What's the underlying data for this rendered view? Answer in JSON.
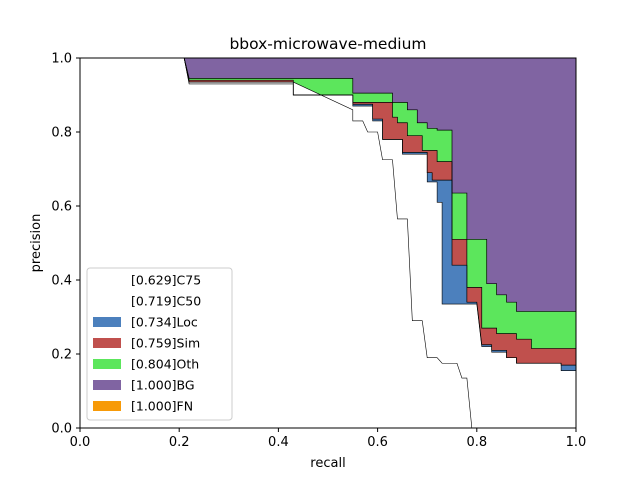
{
  "chart_data": {
    "type": "area",
    "title": "bbox-microwave-medium",
    "xlabel": "recall",
    "ylabel": "precision",
    "xlim": [
      0,
      1
    ],
    "ylim": [
      0,
      1
    ],
    "xticks": [
      "0.0",
      "0.2",
      "0.4",
      "0.6",
      "0.8",
      "1.0"
    ],
    "yticks": [
      "0.0",
      "0.2",
      "0.4",
      "0.6",
      "0.8",
      "1.0"
    ],
    "legend_position": "lower-left",
    "series": [
      {
        "name": "[0.629]C75",
        "color": "#ffffff",
        "points": [
          [
            0,
            1
          ],
          [
            0.21,
            1
          ],
          [
            0.22,
            0.935
          ],
          [
            0.43,
            0.935
          ],
          [
            0.55,
            0.86
          ],
          [
            0.55,
            0.83
          ],
          [
            0.57,
            0.83
          ],
          [
            0.58,
            0.8
          ],
          [
            0.6,
            0.8
          ],
          [
            0.61,
            0.725
          ],
          [
            0.63,
            0.725
          ],
          [
            0.64,
            0.565
          ],
          [
            0.66,
            0.565
          ],
          [
            0.67,
            0.29
          ],
          [
            0.69,
            0.29
          ],
          [
            0.7,
            0.19
          ],
          [
            0.72,
            0.19
          ],
          [
            0.73,
            0.175
          ],
          [
            0.76,
            0.175
          ],
          [
            0.77,
            0.135
          ],
          [
            0.78,
            0.135
          ],
          [
            0.79,
            0
          ]
        ]
      },
      {
        "name": "[0.719]C50",
        "color": "#ffffff",
        "points": [
          [
            0,
            1
          ],
          [
            0.21,
            1
          ],
          [
            0.22,
            0.93
          ],
          [
            0.43,
            0.93
          ],
          [
            0.43,
            0.9
          ],
          [
            0.55,
            0.9
          ],
          [
            0.55,
            0.87
          ],
          [
            0.59,
            0.87
          ],
          [
            0.59,
            0.83
          ],
          [
            0.61,
            0.83
          ],
          [
            0.61,
            0.78
          ],
          [
            0.65,
            0.78
          ],
          [
            0.65,
            0.74
          ],
          [
            0.7,
            0.74
          ],
          [
            0.7,
            0.665
          ],
          [
            0.72,
            0.665
          ],
          [
            0.72,
            0.61
          ],
          [
            0.73,
            0.61
          ],
          [
            0.73,
            0.335
          ],
          [
            0.8,
            0.335
          ],
          [
            0.81,
            0.22
          ],
          [
            0.83,
            0.22
          ],
          [
            0.83,
            0.205
          ],
          [
            0.86,
            0.205
          ],
          [
            0.86,
            0.19
          ],
          [
            0.88,
            0.19
          ],
          [
            0.88,
            0.175
          ],
          [
            0.97,
            0.175
          ],
          [
            0.97,
            0.155
          ],
          [
            1,
            0.155
          ]
        ]
      },
      {
        "name": "[0.734]Loc",
        "color": "#4c80bd",
        "points": [
          [
            0,
            1
          ],
          [
            0.21,
            1
          ],
          [
            0.22,
            0.935
          ],
          [
            0.43,
            0.935
          ],
          [
            0.43,
            0.9
          ],
          [
            0.55,
            0.9
          ],
          [
            0.55,
            0.875
          ],
          [
            0.59,
            0.875
          ],
          [
            0.59,
            0.835
          ],
          [
            0.61,
            0.835
          ],
          [
            0.61,
            0.78
          ],
          [
            0.65,
            0.78
          ],
          [
            0.65,
            0.745
          ],
          [
            0.7,
            0.745
          ],
          [
            0.7,
            0.69
          ],
          [
            0.71,
            0.69
          ],
          [
            0.71,
            0.67
          ],
          [
            0.75,
            0.67
          ],
          [
            0.75,
            0.44
          ],
          [
            0.78,
            0.44
          ],
          [
            0.78,
            0.34
          ],
          [
            0.8,
            0.34
          ],
          [
            0.81,
            0.225
          ],
          [
            0.83,
            0.225
          ],
          [
            0.83,
            0.21
          ],
          [
            0.86,
            0.21
          ],
          [
            0.86,
            0.19
          ],
          [
            0.88,
            0.19
          ],
          [
            0.88,
            0.175
          ],
          [
            0.97,
            0.175
          ],
          [
            0.97,
            0.17
          ],
          [
            1,
            0.17
          ]
        ]
      },
      {
        "name": "[0.759]Sim",
        "color": "#c0504d",
        "points": [
          [
            0,
            1
          ],
          [
            0.21,
            1
          ],
          [
            0.22,
            0.94
          ],
          [
            0.43,
            0.94
          ],
          [
            0.43,
            0.9
          ],
          [
            0.55,
            0.9
          ],
          [
            0.55,
            0.88
          ],
          [
            0.63,
            0.88
          ],
          [
            0.63,
            0.84
          ],
          [
            0.64,
            0.84
          ],
          [
            0.64,
            0.825
          ],
          [
            0.66,
            0.825
          ],
          [
            0.66,
            0.79
          ],
          [
            0.69,
            0.79
          ],
          [
            0.69,
            0.75
          ],
          [
            0.72,
            0.75
          ],
          [
            0.72,
            0.72
          ],
          [
            0.75,
            0.72
          ],
          [
            0.75,
            0.51
          ],
          [
            0.78,
            0.51
          ],
          [
            0.78,
            0.38
          ],
          [
            0.81,
            0.38
          ],
          [
            0.81,
            0.27
          ],
          [
            0.84,
            0.27
          ],
          [
            0.84,
            0.255
          ],
          [
            0.88,
            0.255
          ],
          [
            0.88,
            0.24
          ],
          [
            0.91,
            0.24
          ],
          [
            0.91,
            0.215
          ],
          [
            1,
            0.215
          ]
        ]
      },
      {
        "name": "[0.804]Oth",
        "color": "#5ce65c",
        "points": [
          [
            0,
            1
          ],
          [
            0.21,
            1
          ],
          [
            0.22,
            0.945
          ],
          [
            0.43,
            0.945
          ],
          [
            0.43,
            0.945
          ],
          [
            0.55,
            0.945
          ],
          [
            0.55,
            0.905
          ],
          [
            0.63,
            0.905
          ],
          [
            0.63,
            0.88
          ],
          [
            0.66,
            0.88
          ],
          [
            0.66,
            0.86
          ],
          [
            0.68,
            0.86
          ],
          [
            0.68,
            0.825
          ],
          [
            0.7,
            0.825
          ],
          [
            0.7,
            0.81
          ],
          [
            0.72,
            0.81
          ],
          [
            0.72,
            0.805
          ],
          [
            0.75,
            0.805
          ],
          [
            0.75,
            0.635
          ],
          [
            0.78,
            0.635
          ],
          [
            0.78,
            0.51
          ],
          [
            0.82,
            0.51
          ],
          [
            0.82,
            0.39
          ],
          [
            0.84,
            0.39
          ],
          [
            0.84,
            0.36
          ],
          [
            0.86,
            0.36
          ],
          [
            0.86,
            0.34
          ],
          [
            0.88,
            0.34
          ],
          [
            0.88,
            0.315
          ],
          [
            1,
            0.315
          ]
        ]
      },
      {
        "name": "[1.000]BG",
        "color": "#8064a2",
        "points": [
          [
            0,
            1
          ],
          [
            1,
            1
          ]
        ]
      },
      {
        "name": "[1.000]FN",
        "color": "#f79a08",
        "points": [
          [
            0,
            1
          ],
          [
            1,
            1
          ]
        ]
      }
    ]
  }
}
